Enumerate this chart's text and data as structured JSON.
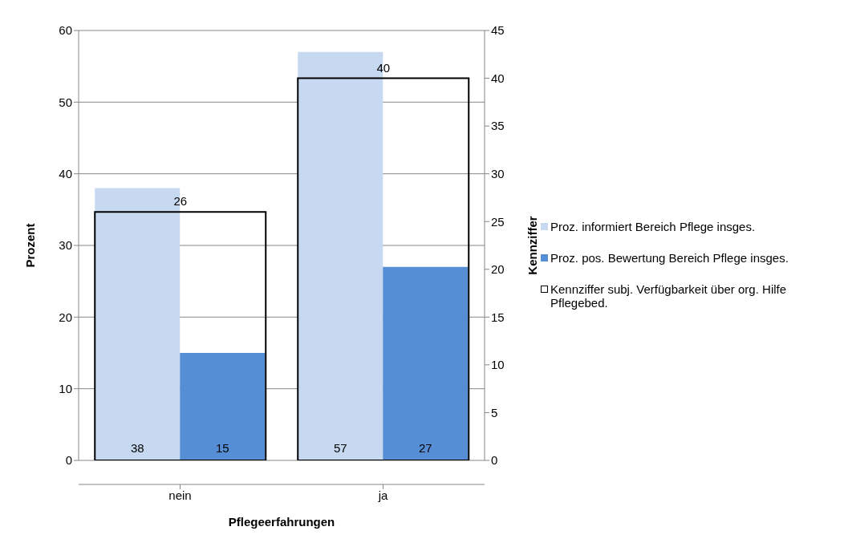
{
  "chart_data": {
    "type": "bar",
    "xlabel": "Pflegeerfahrungen",
    "ylabel": "Prozent",
    "y2label": "Kennziffer",
    "categories": [
      "nein",
      "ja"
    ],
    "series": [
      {
        "name": "Proz. informiert Bereich Pflege insges.",
        "color": "#c6d9f1",
        "values": [
          38,
          57
        ]
      },
      {
        "name": "Proz. pos. Bewertung Bereich Pflege insges.",
        "color": "#558ed5",
        "values": [
          15,
          27
        ]
      },
      {
        "name": "Kennziffer subj. Verfügbarkeit über org. Hilfe Pflegebed.",
        "color": "#000000",
        "values": [
          26,
          40
        ],
        "axis": "y2"
      }
    ],
    "ylim": [
      0,
      60
    ],
    "yticks": [
      0,
      10,
      20,
      30,
      40,
      50,
      60
    ],
    "y2lim": [
      0,
      45
    ],
    "y2ticks": [
      0,
      5,
      10,
      15,
      20,
      25,
      30,
      35,
      40,
      45
    ],
    "grid": "y",
    "legend": "right",
    "data_labels": true
  }
}
